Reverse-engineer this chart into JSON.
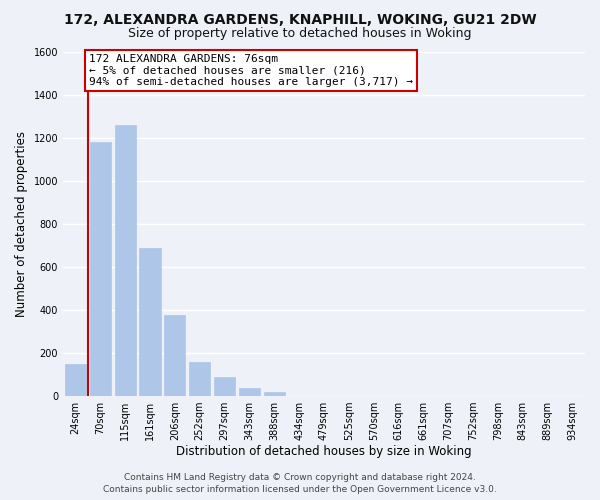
{
  "title": "172, ALEXANDRA GARDENS, KNAPHILL, WOKING, GU21 2DW",
  "subtitle": "Size of property relative to detached houses in Woking",
  "xlabel": "Distribution of detached houses by size in Woking",
  "ylabel": "Number of detached properties",
  "bar_labels": [
    "24sqm",
    "70sqm",
    "115sqm",
    "161sqm",
    "206sqm",
    "252sqm",
    "297sqm",
    "343sqm",
    "388sqm",
    "434sqm",
    "479sqm",
    "525sqm",
    "570sqm",
    "616sqm",
    "661sqm",
    "707sqm",
    "752sqm",
    "798sqm",
    "843sqm",
    "889sqm",
    "934sqm"
  ],
  "bar_values": [
    150,
    1180,
    1260,
    685,
    375,
    160,
    90,
    35,
    20,
    0,
    0,
    0,
    0,
    0,
    0,
    0,
    0,
    0,
    0,
    0,
    0
  ],
  "bar_color": "#aec6e8",
  "annotation_box_text_line1": "172 ALEXANDRA GARDENS: 76sqm",
  "annotation_box_text_line2": "← 5% of detached houses are smaller (216)",
  "annotation_box_text_line3": "94% of semi-detached houses are larger (3,717) →",
  "annotation_box_color": "#ffffff",
  "annotation_box_edge_color": "#cc0000",
  "vline_color": "#cc0000",
  "ylim": [
    0,
    1600
  ],
  "yticks": [
    0,
    200,
    400,
    600,
    800,
    1000,
    1200,
    1400,
    1600
  ],
  "footer_line1": "Contains HM Land Registry data © Crown copyright and database right 2024.",
  "footer_line2": "Contains public sector information licensed under the Open Government Licence v3.0.",
  "bg_color": "#eef2f8",
  "plot_bg_color": "#eef2f8",
  "grid_color": "#ffffff",
  "title_fontsize": 10,
  "subtitle_fontsize": 9,
  "axis_label_fontsize": 8.5,
  "tick_fontsize": 7,
  "annotation_fontsize": 8,
  "footer_fontsize": 6.5
}
